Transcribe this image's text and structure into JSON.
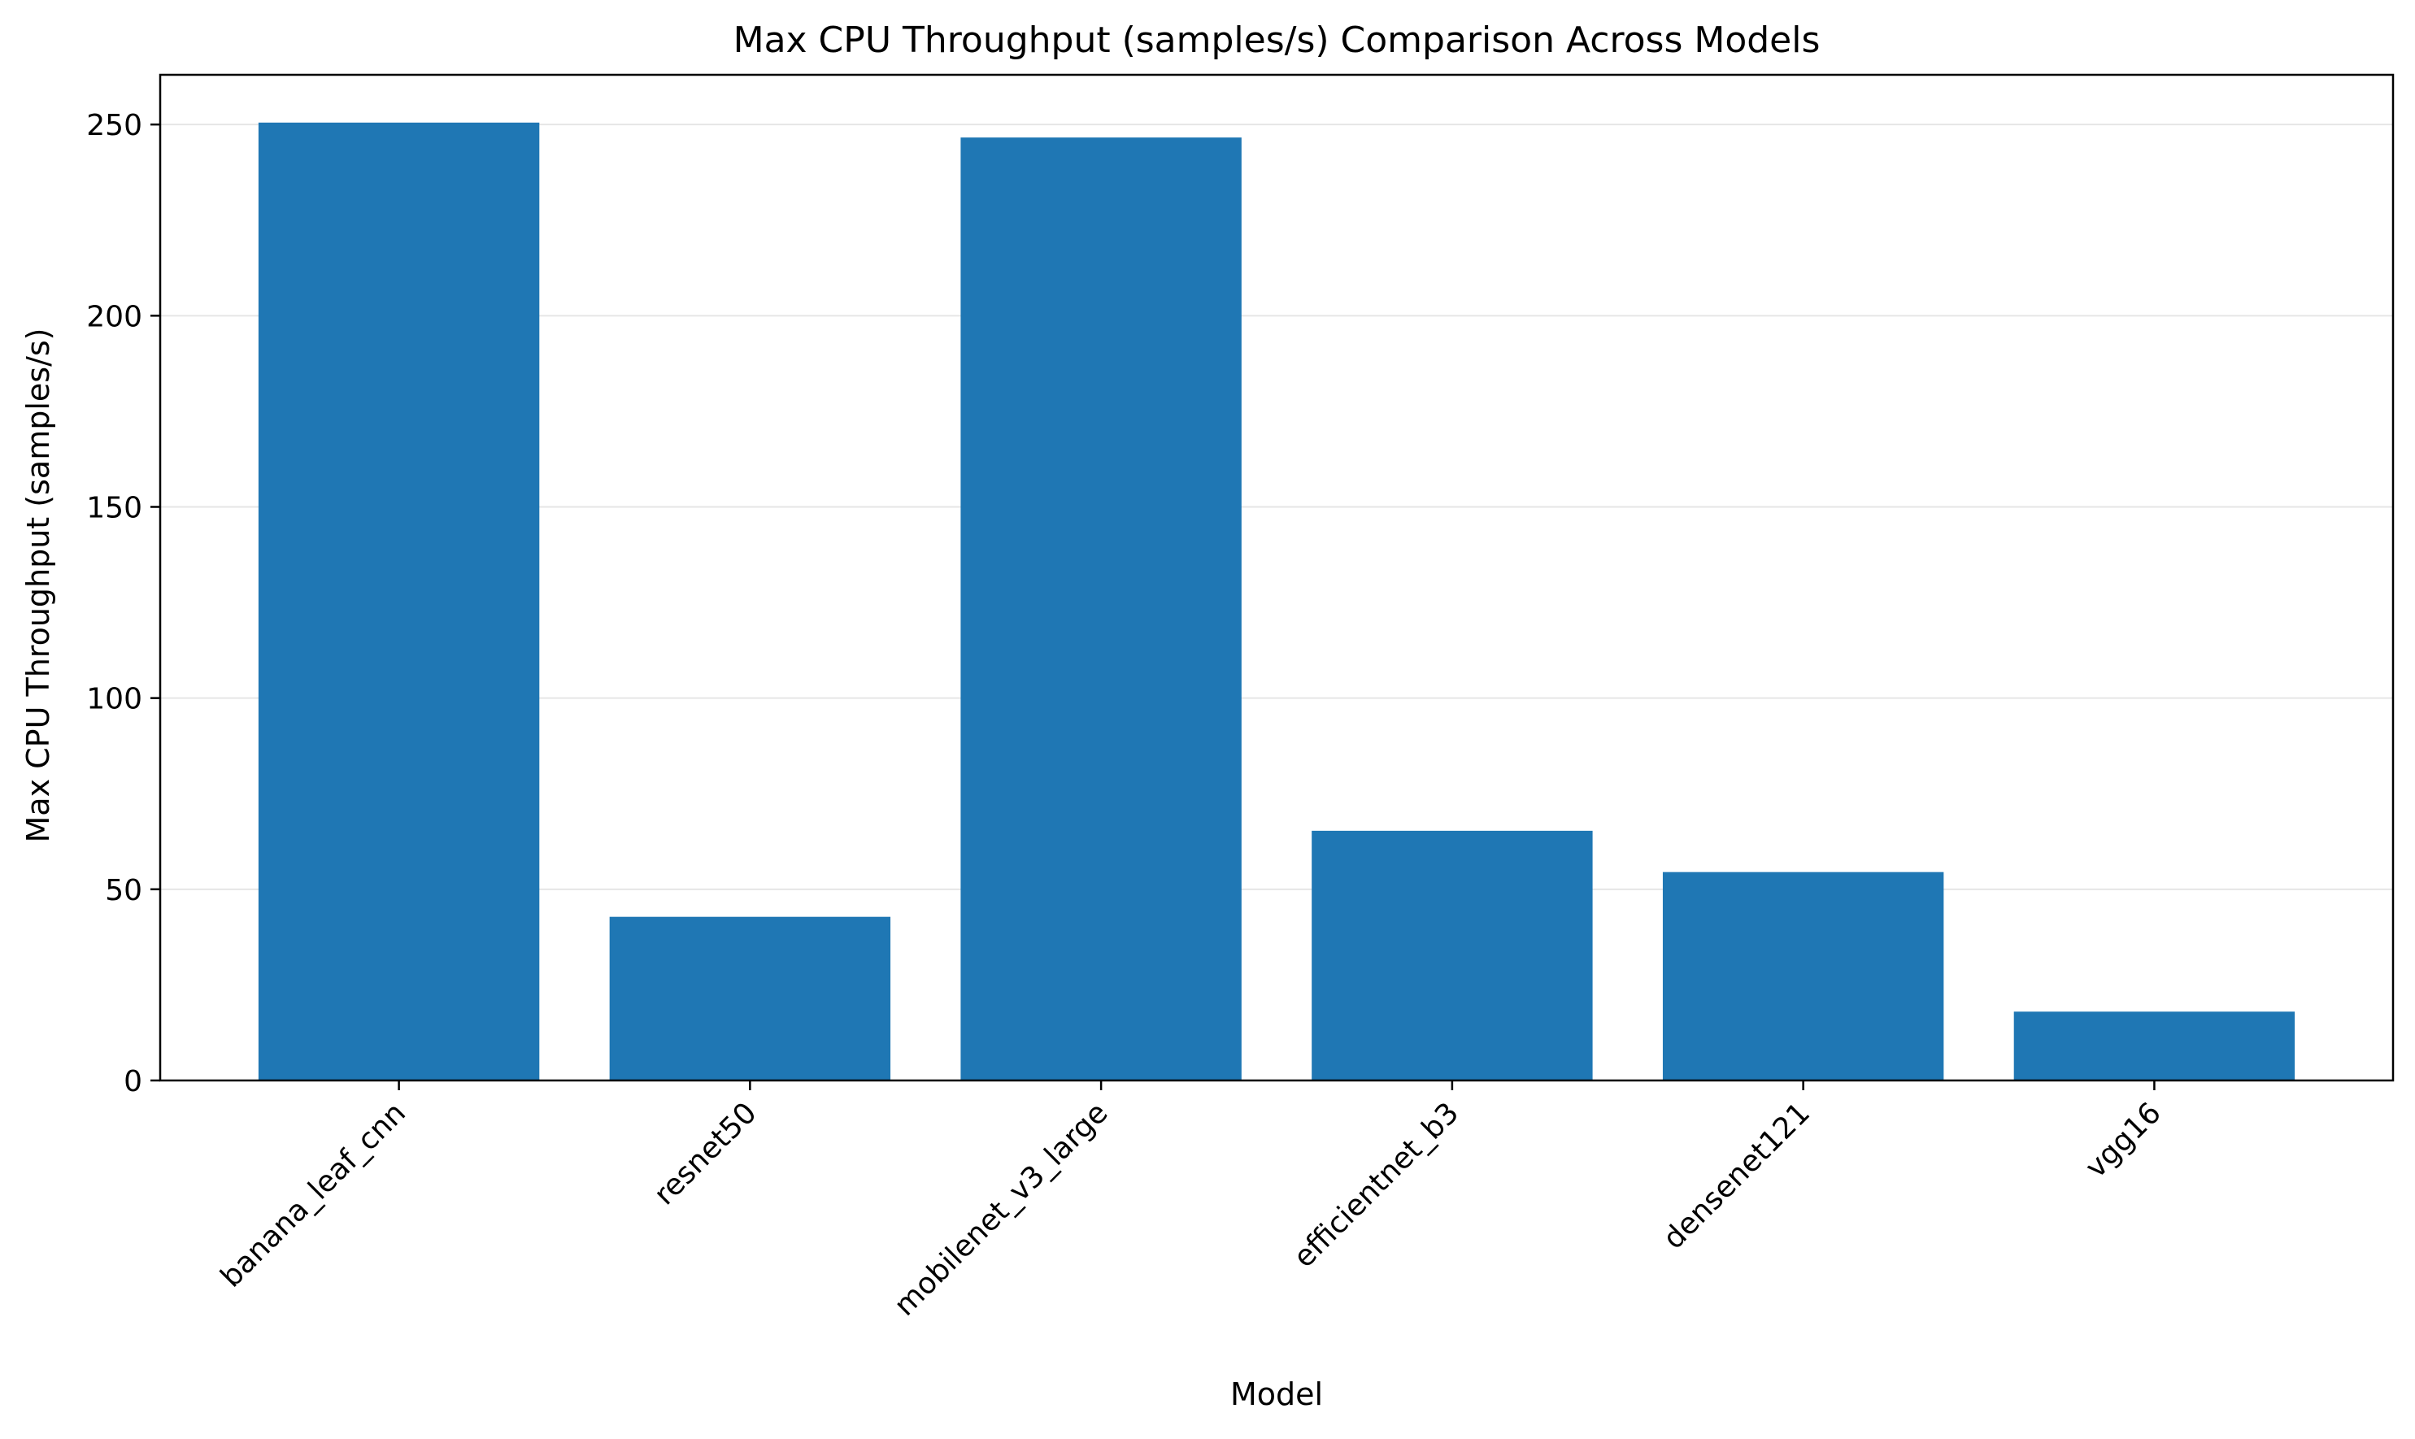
{
  "chart_data": {
    "type": "bar",
    "title": "Max CPU Throughput (samples/s) Comparison Across Models",
    "xlabel": "Model",
    "ylabel": "Max CPU Throughput (samples/s)",
    "categories": [
      "banana_leaf_cnn",
      "resnet50",
      "mobilenet_v3_large",
      "efficientnet_b3",
      "densenet121",
      "vgg16"
    ],
    "values": [
      250.5,
      42.8,
      246.6,
      65.3,
      54.5,
      18.0
    ],
    "ylim": [
      0,
      263
    ],
    "yticks": [
      0,
      50,
      100,
      150,
      200,
      250
    ],
    "grid": "y",
    "bar_color": "#1f77b4",
    "grid_color": "#e6e6e6"
  }
}
